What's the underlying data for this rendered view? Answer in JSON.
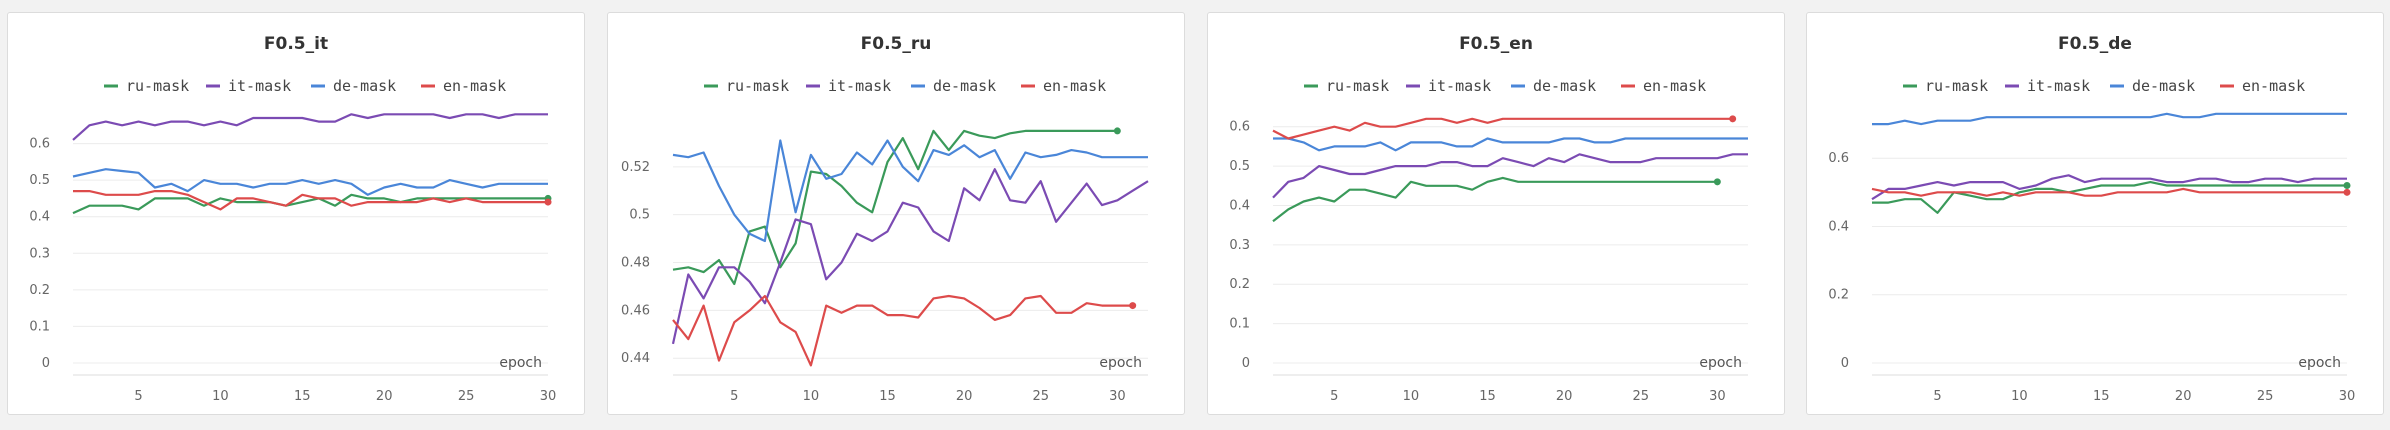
{
  "colors": {
    "ru-mask": "#3a9a5a",
    "it-mask": "#7b4bb3",
    "de-mask": "#4a86d8",
    "en-mask": "#dd4b4b",
    "grid": "#ececec",
    "axis": "#dddddd"
  },
  "chart_data": [
    {
      "type": "line",
      "title": "F0.5_it",
      "xlabel": "epoch",
      "xlim": [
        1,
        30
      ],
      "ylim": [
        0,
        0.7
      ],
      "xticks": [
        5,
        10,
        15,
        20,
        25,
        30
      ],
      "xtick_labels": [
        "5",
        "10",
        "15",
        "20",
        "25",
        "30"
      ],
      "yticks": [
        0,
        0.1,
        0.2,
        0.3,
        0.4,
        0.5,
        0.6
      ],
      "ytick_labels": [
        "0",
        "0.1",
        "0.2",
        "0.3",
        "0.4",
        "0.5",
        "0.6"
      ],
      "end_marker": "en-mask",
      "x": [
        1,
        2,
        3,
        4,
        5,
        6,
        7,
        8,
        9,
        10,
        11,
        12,
        13,
        14,
        15,
        16,
        17,
        18,
        19,
        20,
        21,
        22,
        23,
        24,
        25,
        26,
        27,
        28,
        29,
        30
      ],
      "series": [
        {
          "name": "ru-mask",
          "values": [
            0.41,
            0.43,
            0.43,
            0.43,
            0.42,
            0.45,
            0.45,
            0.45,
            0.43,
            0.45,
            0.44,
            0.44,
            0.44,
            0.43,
            0.44,
            0.45,
            0.43,
            0.46,
            0.45,
            0.45,
            0.44,
            0.45,
            0.45,
            0.45,
            0.45,
            0.45,
            0.45,
            0.45,
            0.45,
            0.45
          ]
        },
        {
          "name": "it-mask",
          "values": [
            0.61,
            0.65,
            0.66,
            0.65,
            0.66,
            0.65,
            0.66,
            0.66,
            0.65,
            0.66,
            0.65,
            0.67,
            0.67,
            0.67,
            0.67,
            0.66,
            0.66,
            0.68,
            0.67,
            0.68,
            0.68,
            0.68,
            0.68,
            0.67,
            0.68,
            0.68,
            0.67,
            0.68,
            0.68,
            0.68
          ]
        },
        {
          "name": "de-mask",
          "values": [
            0.51,
            0.52,
            0.53,
            0.525,
            0.52,
            0.48,
            0.49,
            0.47,
            0.5,
            0.49,
            0.49,
            0.48,
            0.49,
            0.49,
            0.5,
            0.49,
            0.5,
            0.49,
            0.46,
            0.48,
            0.49,
            0.48,
            0.48,
            0.5,
            0.49,
            0.48,
            0.49,
            0.49,
            0.49,
            0.49
          ]
        },
        {
          "name": "en-mask",
          "values": [
            0.47,
            0.47,
            0.46,
            0.46,
            0.46,
            0.47,
            0.47,
            0.46,
            0.44,
            0.42,
            0.45,
            0.45,
            0.44,
            0.43,
            0.46,
            0.45,
            0.45,
            0.43,
            0.44,
            0.44,
            0.44,
            0.44,
            0.45,
            0.44,
            0.45,
            0.44,
            0.44,
            0.44,
            0.44,
            0.44
          ]
        }
      ]
    },
    {
      "type": "line",
      "title": "F0.5_ru",
      "xlabel": "epoch",
      "xlim": [
        1,
        32
      ],
      "ylim": [
        0.438,
        0.545
      ],
      "xticks": [
        5,
        10,
        15,
        20,
        25,
        30
      ],
      "xtick_labels": [
        "5",
        "10",
        "15",
        "20",
        "25",
        "30"
      ],
      "yticks": [
        0.44,
        0.46,
        0.48,
        0.5,
        0.52
      ],
      "ytick_labels": [
        "0.44",
        "0.46",
        "0.48",
        "0.5",
        "0.52"
      ],
      "end_marker": "all-last",
      "series": [
        {
          "name": "ru-mask",
          "x": [
            1,
            2,
            3,
            4,
            5,
            6,
            7,
            8,
            9,
            10,
            11,
            12,
            13,
            14,
            15,
            16,
            17,
            18,
            19,
            20,
            21,
            22,
            23,
            24,
            25,
            26,
            27,
            28,
            29,
            30
          ],
          "values": [
            0.477,
            0.478,
            0.476,
            0.481,
            0.471,
            0.493,
            0.495,
            0.478,
            0.488,
            0.518,
            0.517,
            0.512,
            0.505,
            0.501,
            0.522,
            0.532,
            0.519,
            0.535,
            0.527,
            0.535,
            0.533,
            0.532,
            0.534,
            0.535,
            0.535,
            0.535,
            0.535,
            0.535,
            0.535,
            0.535
          ]
        },
        {
          "name": "it-mask",
          "x": [
            1,
            2,
            3,
            4,
            5,
            6,
            7,
            8,
            9,
            10,
            11,
            12,
            13,
            14,
            15,
            16,
            17,
            18,
            19,
            20,
            21,
            22,
            23,
            24,
            25,
            26,
            27,
            28,
            29,
            30,
            31,
            32
          ],
          "values": [
            0.446,
            0.475,
            0.465,
            0.478,
            0.478,
            0.472,
            0.463,
            0.48,
            0.498,
            0.496,
            0.473,
            0.48,
            0.492,
            0.489,
            0.493,
            0.505,
            0.503,
            0.493,
            0.489,
            0.511,
            0.506,
            0.519,
            0.506,
            0.505,
            0.514,
            0.497,
            0.505,
            0.513,
            0.504,
            0.506,
            0.51,
            0.514
          ]
        },
        {
          "name": "de-mask",
          "x": [
            1,
            2,
            3,
            4,
            5,
            6,
            7,
            8,
            9,
            10,
            11,
            12,
            13,
            14,
            15,
            16,
            17,
            18,
            19,
            20,
            21,
            22,
            23,
            24,
            25,
            26,
            27,
            28,
            29,
            30,
            31,
            32
          ],
          "values": [
            0.525,
            0.524,
            0.526,
            0.512,
            0.5,
            0.492,
            0.489,
            0.531,
            0.501,
            0.525,
            0.515,
            0.517,
            0.526,
            0.521,
            0.531,
            0.52,
            0.514,
            0.527,
            0.525,
            0.529,
            0.524,
            0.527,
            0.515,
            0.526,
            0.524,
            0.525,
            0.527,
            0.526,
            0.524,
            0.524,
            0.524,
            0.524
          ]
        },
        {
          "name": "en-mask",
          "x": [
            1,
            2,
            3,
            4,
            5,
            6,
            7,
            8,
            9,
            10,
            11,
            12,
            13,
            14,
            15,
            16,
            17,
            18,
            19,
            20,
            21,
            22,
            23,
            24,
            25,
            26,
            27,
            28,
            29,
            30,
            31
          ],
          "values": [
            0.456,
            0.448,
            0.462,
            0.439,
            0.455,
            0.46,
            0.466,
            0.455,
            0.451,
            0.437,
            0.462,
            0.459,
            0.462,
            0.462,
            0.458,
            0.458,
            0.457,
            0.465,
            0.466,
            0.465,
            0.461,
            0.456,
            0.458,
            0.465,
            0.466,
            0.459,
            0.459,
            0.463,
            0.462,
            0.462,
            0.462
          ]
        }
      ]
    },
    {
      "type": "line",
      "title": "F0.5_en",
      "xlabel": "epoch",
      "xlim": [
        1,
        32
      ],
      "ylim": [
        0,
        0.65
      ],
      "xticks": [
        5,
        10,
        15,
        20,
        25,
        30
      ],
      "xtick_labels": [
        "5",
        "10",
        "15",
        "20",
        "25",
        "30"
      ],
      "yticks": [
        0,
        0.1,
        0.2,
        0.3,
        0.4,
        0.5,
        0.6
      ],
      "ytick_labels": [
        "0",
        "0.1",
        "0.2",
        "0.3",
        "0.4",
        "0.5",
        "0.6"
      ],
      "end_marker": "ru-en",
      "series": [
        {
          "name": "ru-mask",
          "x": [
            1,
            2,
            3,
            4,
            5,
            6,
            7,
            8,
            9,
            10,
            11,
            12,
            13,
            14,
            15,
            16,
            17,
            18,
            19,
            20,
            21,
            22,
            23,
            24,
            25,
            26,
            27,
            28,
            29,
            30
          ],
          "values": [
            0.36,
            0.39,
            0.41,
            0.42,
            0.41,
            0.44,
            0.44,
            0.43,
            0.42,
            0.46,
            0.45,
            0.45,
            0.45,
            0.44,
            0.46,
            0.47,
            0.46,
            0.46,
            0.46,
            0.46,
            0.46,
            0.46,
            0.46,
            0.46,
            0.46,
            0.46,
            0.46,
            0.46,
            0.46,
            0.46
          ]
        },
        {
          "name": "it-mask",
          "x": [
            1,
            2,
            3,
            4,
            5,
            6,
            7,
            8,
            9,
            10,
            11,
            12,
            13,
            14,
            15,
            16,
            17,
            18,
            19,
            20,
            21,
            22,
            23,
            24,
            25,
            26,
            27,
            28,
            29,
            30,
            31,
            32
          ],
          "values": [
            0.42,
            0.46,
            0.47,
            0.5,
            0.49,
            0.48,
            0.48,
            0.49,
            0.5,
            0.5,
            0.5,
            0.51,
            0.51,
            0.5,
            0.5,
            0.52,
            0.51,
            0.5,
            0.52,
            0.51,
            0.53,
            0.52,
            0.51,
            0.51,
            0.51,
            0.52,
            0.52,
            0.52,
            0.52,
            0.52,
            0.53,
            0.53
          ]
        },
        {
          "name": "de-mask",
          "x": [
            1,
            2,
            3,
            4,
            5,
            6,
            7,
            8,
            9,
            10,
            11,
            12,
            13,
            14,
            15,
            16,
            17,
            18,
            19,
            20,
            21,
            22,
            23,
            24,
            25,
            26,
            27,
            28,
            29,
            30,
            31,
            32
          ],
          "values": [
            0.57,
            0.57,
            0.56,
            0.54,
            0.55,
            0.55,
            0.55,
            0.56,
            0.54,
            0.56,
            0.56,
            0.56,
            0.55,
            0.55,
            0.57,
            0.56,
            0.56,
            0.56,
            0.56,
            0.57,
            0.57,
            0.56,
            0.56,
            0.57,
            0.57,
            0.57,
            0.57,
            0.57,
            0.57,
            0.57,
            0.57,
            0.57
          ]
        },
        {
          "name": "en-mask",
          "x": [
            1,
            2,
            3,
            4,
            5,
            6,
            7,
            8,
            9,
            10,
            11,
            12,
            13,
            14,
            15,
            16,
            17,
            18,
            19,
            20,
            21,
            22,
            23,
            24,
            25,
            26,
            27,
            28,
            29,
            30,
            31
          ],
          "values": [
            0.59,
            0.57,
            0.58,
            0.59,
            0.6,
            0.59,
            0.61,
            0.6,
            0.6,
            0.61,
            0.62,
            0.62,
            0.61,
            0.62,
            0.61,
            0.62,
            0.62,
            0.62,
            0.62,
            0.62,
            0.62,
            0.62,
            0.62,
            0.62,
            0.62,
            0.62,
            0.62,
            0.62,
            0.62,
            0.62,
            0.62
          ]
        }
      ]
    },
    {
      "type": "line",
      "title": "F0.5_de",
      "xlabel": "epoch",
      "xlim": [
        1,
        30
      ],
      "ylim": [
        0,
        0.75
      ],
      "xticks": [
        5,
        10,
        15,
        20,
        25,
        30
      ],
      "xtick_labels": [
        "5",
        "10",
        "15",
        "20",
        "25",
        "30"
      ],
      "yticks": [
        0,
        0.2,
        0.4,
        0.6
      ],
      "ytick_labels": [
        "0",
        "0.2",
        "0.4",
        "0.6"
      ],
      "end_marker": "ru-en",
      "x": [
        1,
        2,
        3,
        4,
        5,
        6,
        7,
        8,
        9,
        10,
        11,
        12,
        13,
        14,
        15,
        16,
        17,
        18,
        19,
        20,
        21,
        22,
        23,
        24,
        25,
        26,
        27,
        28,
        29,
        30
      ],
      "series": [
        {
          "name": "ru-mask",
          "values": [
            0.47,
            0.47,
            0.48,
            0.48,
            0.44,
            0.5,
            0.49,
            0.48,
            0.48,
            0.5,
            0.51,
            0.51,
            0.5,
            0.51,
            0.52,
            0.52,
            0.52,
            0.53,
            0.52,
            0.52,
            0.52,
            0.52,
            0.52,
            0.52,
            0.52,
            0.52,
            0.52,
            0.52,
            0.52,
            0.52
          ]
        },
        {
          "name": "it-mask",
          "values": [
            0.48,
            0.51,
            0.51,
            0.52,
            0.53,
            0.52,
            0.53,
            0.53,
            0.53,
            0.51,
            0.52,
            0.54,
            0.55,
            0.53,
            0.54,
            0.54,
            0.54,
            0.54,
            0.53,
            0.53,
            0.54,
            0.54,
            0.53,
            0.53,
            0.54,
            0.54,
            0.53,
            0.54,
            0.54,
            0.54
          ]
        },
        {
          "name": "de-mask",
          "values": [
            0.7,
            0.7,
            0.71,
            0.7,
            0.71,
            0.71,
            0.71,
            0.72,
            0.72,
            0.72,
            0.72,
            0.72,
            0.72,
            0.72,
            0.72,
            0.72,
            0.72,
            0.72,
            0.73,
            0.72,
            0.72,
            0.73,
            0.73,
            0.73,
            0.73,
            0.73,
            0.73,
            0.73,
            0.73,
            0.73
          ]
        },
        {
          "name": "en-mask",
          "values": [
            0.51,
            0.5,
            0.5,
            0.49,
            0.5,
            0.5,
            0.5,
            0.49,
            0.5,
            0.49,
            0.5,
            0.5,
            0.5,
            0.49,
            0.49,
            0.5,
            0.5,
            0.5,
            0.5,
            0.51,
            0.5,
            0.5,
            0.5,
            0.5,
            0.5,
            0.5,
            0.5,
            0.5,
            0.5,
            0.5
          ]
        }
      ]
    }
  ]
}
